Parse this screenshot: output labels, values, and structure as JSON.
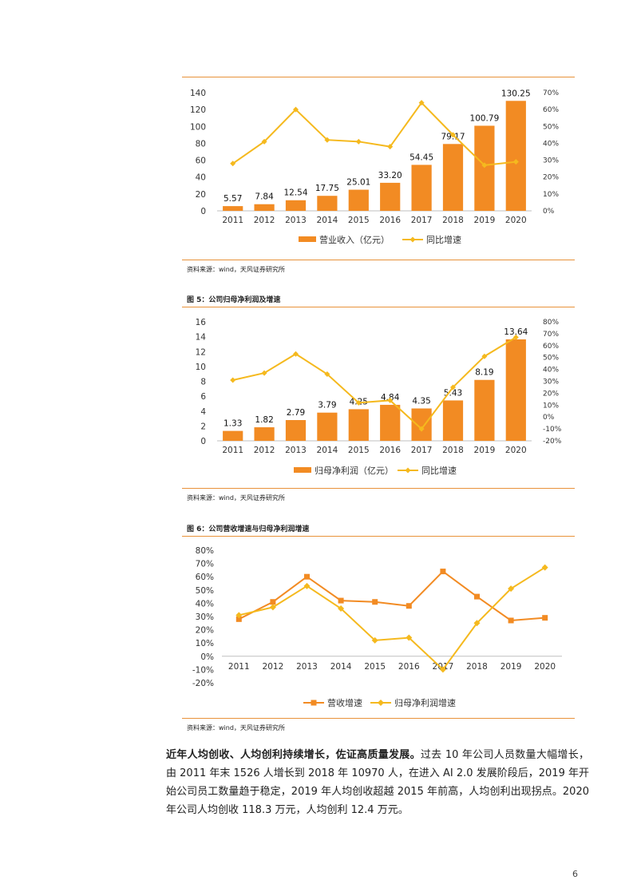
{
  "page_number": "6",
  "colors": {
    "accent": "#e8923a",
    "bar": "#f28b23",
    "growth_line": "#f5b91e",
    "revenue_growth_line": "#f28b23",
    "profit_growth_line": "#f5b91e"
  },
  "figures": [
    {
      "title": "",
      "source": "资料来源：wind，天风证券研究所"
    },
    {
      "title": "图 5：公司归母净利润及增速",
      "source": "资料来源：wind，天风证券研究所"
    },
    {
      "title": "图 6：公司营收增速与归母净利润增速",
      "source": "资料来源：wind，天风证券研究所"
    }
  ],
  "paragraph": {
    "bold": "近年人均创收、人均创利持续增长，佐证高质量发展。",
    "rest": "过去 10 年公司人员数量大幅增长，由 2011 年末 1526 人增长到 2018 年 10970 人，在进入 AI 2.0 发展阶段后，2019 年开始公司员工数量趋于稳定，2019 年人均创收超越 2015 年前高，人均创利出现拐点。2020 年公司人均创收 118.3 万元，人均创利 12.4 万元。"
  },
  "chart_data": [
    {
      "type": "bar",
      "categories": [
        "2011",
        "2012",
        "2013",
        "2014",
        "2015",
        "2016",
        "2017",
        "2018",
        "2019",
        "2020"
      ],
      "series": [
        {
          "name": "营业收入（亿元）",
          "kind": "bar",
          "axis": "left",
          "values": [
            5.57,
            7.84,
            12.54,
            17.75,
            25.01,
            33.2,
            54.45,
            79.17,
            100.79,
            130.25
          ],
          "labels": [
            "5.57",
            "7.84",
            "12.54",
            "17.75",
            "25.01",
            "33.20",
            "54.45",
            "79.17",
            "100.79",
            "130.25"
          ]
        },
        {
          "name": "同比增速",
          "kind": "line",
          "axis": "right",
          "values": [
            28,
            41,
            60,
            42,
            41,
            38,
            64,
            45,
            27,
            29
          ]
        }
      ],
      "ylim": [
        0,
        140
      ],
      "yticks": [
        "0",
        "20",
        "40",
        "60",
        "80",
        "100",
        "120",
        "140"
      ],
      "y2lim": [
        0,
        70
      ],
      "y2ticks": [
        "0%",
        "10%",
        "20%",
        "30%",
        "40%",
        "50%",
        "60%",
        "70%"
      ],
      "legend": "bottom"
    },
    {
      "type": "bar",
      "categories": [
        "2011",
        "2012",
        "2013",
        "2014",
        "2015",
        "2016",
        "2017",
        "2018",
        "2019",
        "2020"
      ],
      "series": [
        {
          "name": "归母净利润（亿元）",
          "kind": "bar",
          "axis": "left",
          "values": [
            1.33,
            1.82,
            2.79,
            3.79,
            4.25,
            4.84,
            4.35,
            5.43,
            8.19,
            13.64
          ],
          "labels": [
            "1.33",
            "1.82",
            "2.79",
            "3.79",
            "4.25",
            "4.84",
            "4.35",
            "5.43",
            "8.19",
            "13.64"
          ]
        },
        {
          "name": "同比增速",
          "kind": "line",
          "axis": "right",
          "values": [
            31,
            37,
            53,
            36,
            12,
            14,
            -10,
            25,
            51,
            67
          ]
        }
      ],
      "ylim": [
        0,
        16
      ],
      "yticks": [
        "0",
        "2",
        "4",
        "6",
        "8",
        "10",
        "12",
        "14",
        "16"
      ],
      "y2lim": [
        -20,
        80
      ],
      "y2ticks": [
        "-20%",
        "-10%",
        "0%",
        "10%",
        "20%",
        "30%",
        "40%",
        "50%",
        "60%",
        "70%",
        "80%"
      ],
      "legend": "bottom"
    },
    {
      "type": "line",
      "categories": [
        "2011",
        "2012",
        "2013",
        "2014",
        "2015",
        "2016",
        "2017",
        "2018",
        "2019",
        "2020"
      ],
      "series": [
        {
          "name": "营收增速",
          "marker": "square",
          "values": [
            28,
            41,
            60,
            42,
            41,
            38,
            64,
            45,
            27,
            29
          ]
        },
        {
          "name": "归母净利润增速",
          "marker": "diamond",
          "values": [
            31,
            37,
            53,
            36,
            12,
            14,
            -10,
            25,
            51,
            67
          ]
        }
      ],
      "ylim": [
        -20,
        80
      ],
      "yticks": [
        "-20%",
        "-10%",
        "0%",
        "10%",
        "20%",
        "30%",
        "40%",
        "50%",
        "60%",
        "70%",
        "80%"
      ],
      "legend": "bottom"
    }
  ]
}
